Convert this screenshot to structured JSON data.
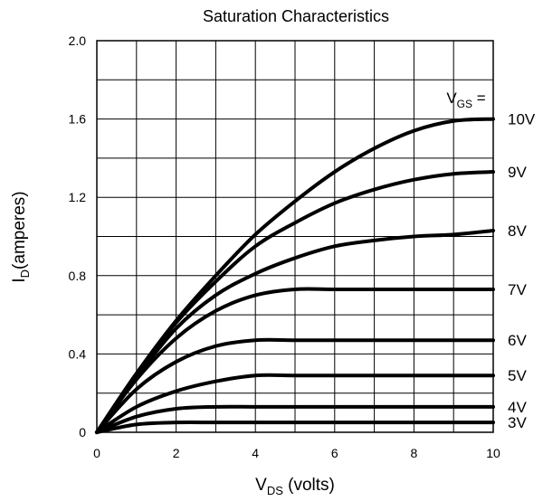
{
  "chart_data": {
    "type": "line",
    "title": "Saturation Characteristics",
    "xlabel": {
      "main": "V",
      "sub": "DS",
      "suffix": " (volts)"
    },
    "ylabel": {
      "main": "I",
      "sub": "D",
      "suffix": "(amperes)"
    },
    "xlim": [
      0,
      10
    ],
    "ylim": [
      0,
      2.0
    ],
    "x_ticks": [
      0,
      2,
      4,
      6,
      8,
      10
    ],
    "x_tick_labels": [
      "0",
      "2",
      "4",
      "6",
      "8",
      "10"
    ],
    "y_ticks": [
      0,
      0.4,
      0.8,
      1.2,
      1.6,
      2.0
    ],
    "y_tick_labels": [
      "0",
      "0.4",
      "0.8",
      "1.2",
      "1.6",
      "2.0"
    ],
    "grid": {
      "x_step": 1,
      "y_step": 0.2,
      "shown": true
    },
    "legend_header": {
      "main": "V",
      "sub": "GS",
      "suffix": " ="
    },
    "series": [
      {
        "name": "10V",
        "x": [
          0,
          1,
          2,
          3,
          4,
          5,
          6,
          7,
          8,
          9,
          10
        ],
        "y": [
          0,
          0.3,
          0.57,
          0.8,
          1.01,
          1.18,
          1.33,
          1.45,
          1.54,
          1.59,
          1.6
        ]
      },
      {
        "name": "9V",
        "x": [
          0,
          1,
          2,
          3,
          4,
          5,
          6,
          7,
          8,
          9,
          10
        ],
        "y": [
          0,
          0.3,
          0.56,
          0.77,
          0.95,
          1.07,
          1.17,
          1.24,
          1.29,
          1.32,
          1.33
        ]
      },
      {
        "name": "8V",
        "x": [
          0,
          1,
          2,
          3,
          4,
          5,
          6,
          7,
          8,
          9,
          10
        ],
        "y": [
          0,
          0.28,
          0.53,
          0.7,
          0.81,
          0.89,
          0.95,
          0.98,
          1.0,
          1.01,
          1.03
        ]
      },
      {
        "name": "7V",
        "x": [
          0,
          1,
          2,
          3,
          4,
          5,
          6,
          7,
          8,
          9,
          10
        ],
        "y": [
          0,
          0.27,
          0.48,
          0.62,
          0.7,
          0.73,
          0.73,
          0.73,
          0.73,
          0.73,
          0.73
        ]
      },
      {
        "name": "6V",
        "x": [
          0,
          1,
          2,
          3,
          4,
          5,
          6,
          7,
          8,
          9,
          10
        ],
        "y": [
          0,
          0.22,
          0.36,
          0.44,
          0.47,
          0.47,
          0.47,
          0.47,
          0.47,
          0.47,
          0.47
        ]
      },
      {
        "name": "5V",
        "x": [
          0,
          1,
          2,
          3,
          4,
          5,
          6,
          7,
          8,
          9,
          10
        ],
        "y": [
          0,
          0.13,
          0.21,
          0.26,
          0.29,
          0.29,
          0.29,
          0.29,
          0.29,
          0.29,
          0.29
        ]
      },
      {
        "name": "4V",
        "x": [
          0,
          1,
          2,
          3,
          4,
          5,
          6,
          7,
          8,
          9,
          10
        ],
        "y": [
          0,
          0.08,
          0.12,
          0.13,
          0.13,
          0.13,
          0.13,
          0.13,
          0.13,
          0.13,
          0.13
        ]
      },
      {
        "name": "3V",
        "x": [
          0,
          1,
          2,
          3,
          4,
          5,
          6,
          7,
          8,
          9,
          10
        ],
        "y": [
          0,
          0.04,
          0.05,
          0.05,
          0.05,
          0.05,
          0.05,
          0.05,
          0.05,
          0.05,
          0.05
        ]
      }
    ]
  }
}
